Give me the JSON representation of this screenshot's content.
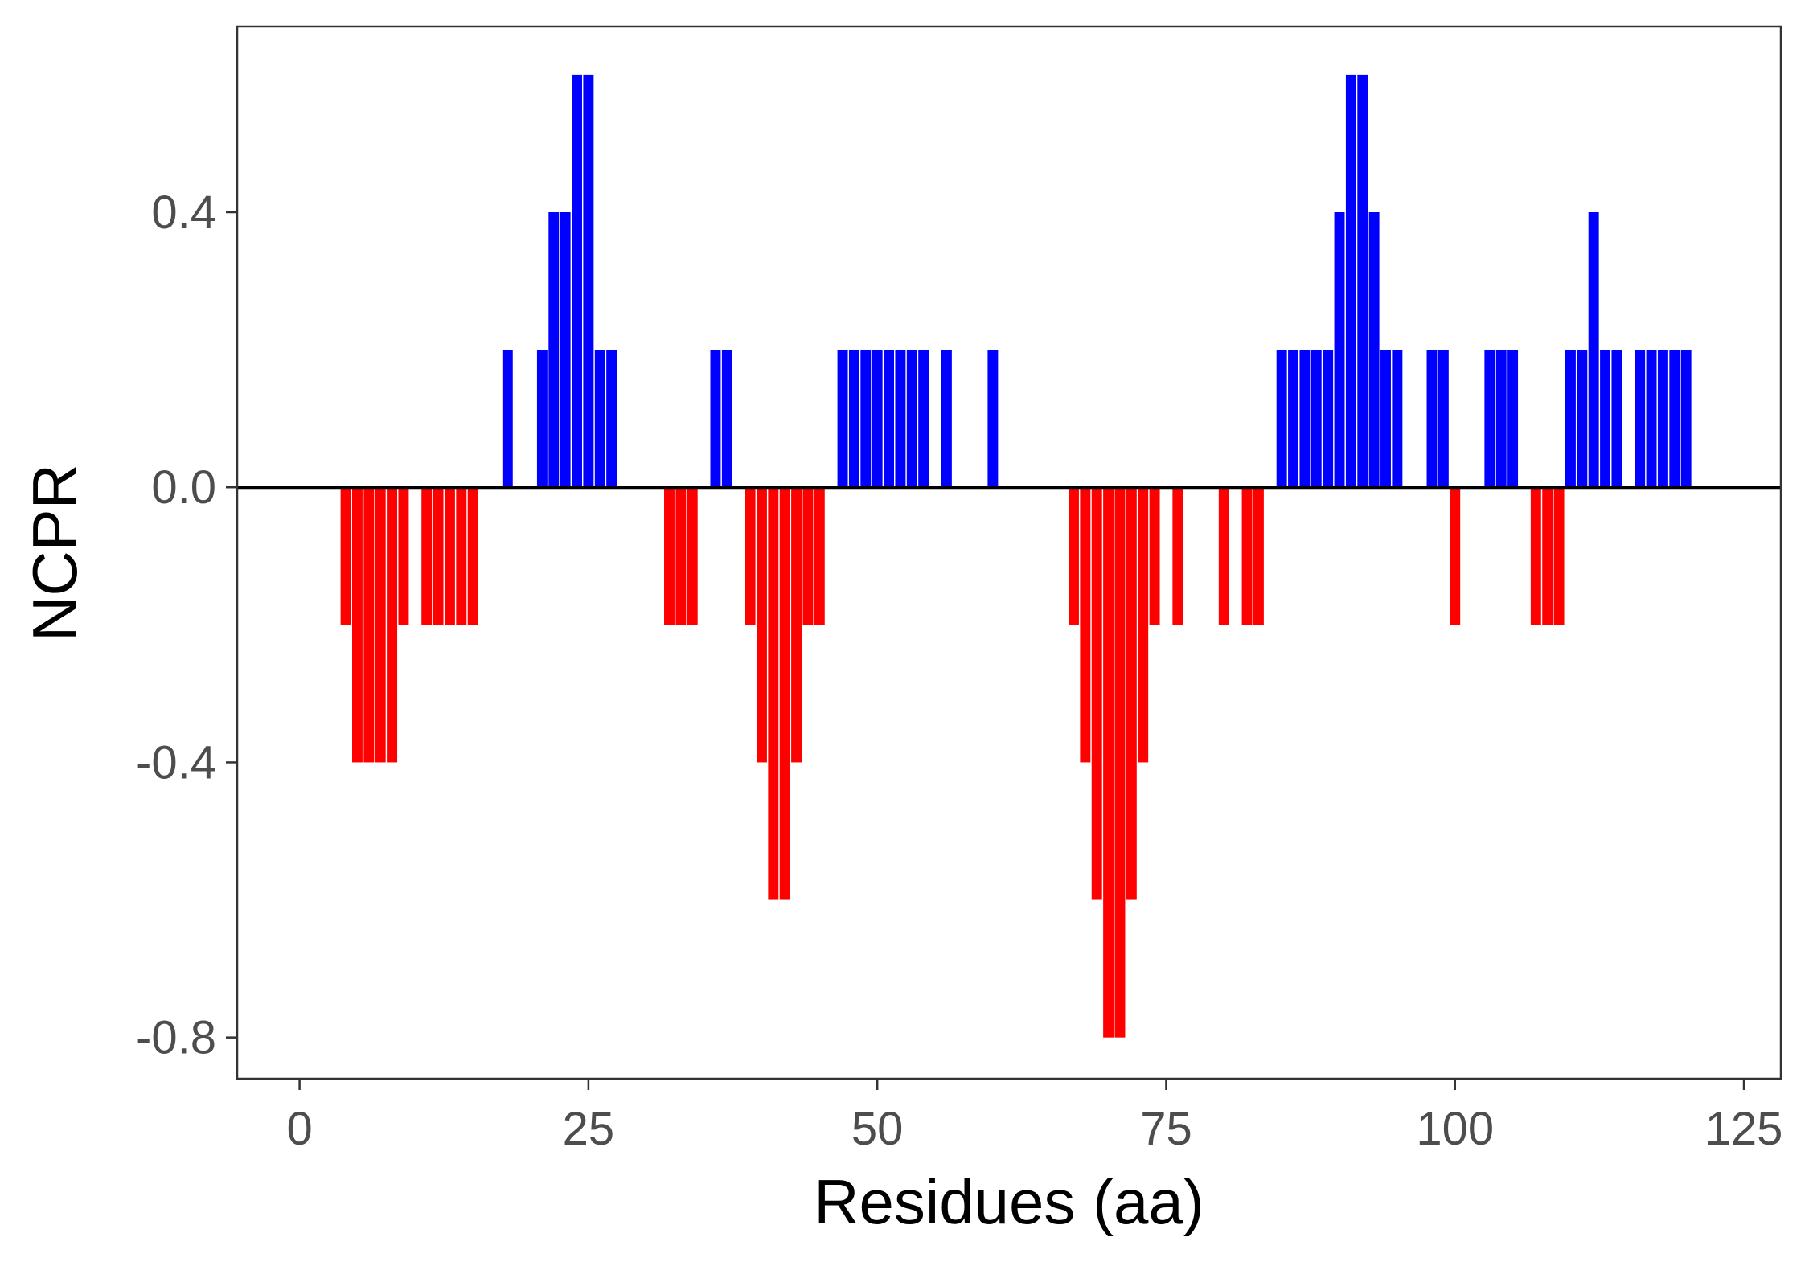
{
  "chart_data": {
    "type": "bar",
    "xlabel": "Residues (aa)",
    "ylabel": "NCPR",
    "xlim": [
      -5.4,
      128.2
    ],
    "ylim": [
      -0.86,
      0.67
    ],
    "xticks": [
      0,
      25,
      50,
      75,
      100,
      125
    ],
    "xtick_labels": [
      "0",
      "25",
      "50",
      "75",
      "100",
      "125"
    ],
    "yticks": [
      -0.8,
      -0.4,
      0.0,
      0.4
    ],
    "ytick_labels": [
      "-0.8",
      "-0.4",
      "0.0",
      "0.4"
    ],
    "grid": false,
    "zero_line": true,
    "colors": {
      "positive": "#0000ff",
      "negative": "#ff0000",
      "baseline": "#000000",
      "frame": "#333333"
    },
    "residues": [
      4,
      5,
      6,
      7,
      8,
      9,
      11,
      12,
      13,
      14,
      15,
      18,
      21,
      22,
      23,
      24,
      25,
      26,
      27,
      32,
      33,
      34,
      36,
      37,
      39,
      40,
      41,
      42,
      43,
      44,
      45,
      47,
      48,
      49,
      50,
      51,
      52,
      53,
      54,
      56,
      60,
      67,
      68,
      69,
      70,
      71,
      72,
      73,
      74,
      76,
      80,
      82,
      83,
      85,
      86,
      87,
      88,
      89,
      90,
      91,
      92,
      93,
      94,
      95,
      98,
      99,
      100,
      103,
      104,
      105,
      107,
      108,
      109,
      110,
      111,
      112,
      113,
      114,
      116,
      117,
      118,
      119,
      120
    ],
    "values": [
      -0.2,
      -0.4,
      -0.4,
      -0.4,
      -0.4,
      -0.2,
      -0.2,
      -0.2,
      -0.2,
      -0.2,
      -0.2,
      0.2,
      0.2,
      0.4,
      0.4,
      0.6,
      0.6,
      0.2,
      0.2,
      -0.2,
      -0.2,
      -0.2,
      0.2,
      0.2,
      -0.2,
      -0.4,
      -0.6,
      -0.6,
      -0.4,
      -0.2,
      -0.2,
      0.2,
      0.2,
      0.2,
      0.2,
      0.2,
      0.2,
      0.2,
      0.2,
      0.2,
      0.2,
      -0.2,
      -0.4,
      -0.6,
      -0.8,
      -0.8,
      -0.6,
      -0.4,
      -0.2,
      -0.2,
      -0.2,
      -0.2,
      -0.2,
      0.2,
      0.2,
      0.2,
      0.2,
      0.2,
      0.4,
      0.6,
      0.6,
      0.4,
      0.2,
      0.2,
      0.2,
      0.2,
      -0.2,
      0.2,
      0.2,
      0.2,
      -0.2,
      -0.2,
      -0.2,
      0.2,
      0.2,
      0.4,
      0.2,
      0.2,
      0.2,
      0.2,
      0.2,
      0.2,
      0.2
    ]
  }
}
